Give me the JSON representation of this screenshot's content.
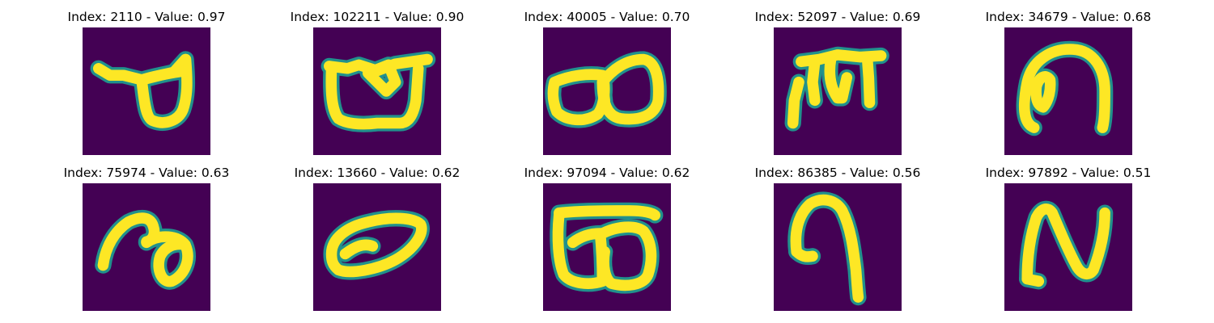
{
  "figure": {
    "colors": {
      "background": "#440154",
      "mid": "#21918c",
      "stroke": "#fde725"
    },
    "panels": [
      {
        "index": "2110",
        "value": "0.97",
        "title": "Index: 2110 - Value: 0.97",
        "glyph": "ta-hooked-loop"
      },
      {
        "index": "102211",
        "value": "0.90",
        "title": "Index: 102211 - Value: 0.90",
        "glyph": "u-with-bar"
      },
      {
        "index": "40005",
        "value": "0.70",
        "title": "Index: 40005 - Value: 0.70",
        "glyph": "double-loop"
      },
      {
        "index": "52097",
        "value": "0.69",
        "title": "Index: 52097 - Value: 0.69",
        "glyph": "headline-legs"
      },
      {
        "index": "34679",
        "value": "0.68",
        "title": "Index: 34679 - Value: 0.68",
        "glyph": "arch-with-loop"
      },
      {
        "index": "75974",
        "value": "0.63",
        "title": "Index: 75974 - Value: 0.63",
        "glyph": "curl-loop"
      },
      {
        "index": "13660",
        "value": "0.62",
        "title": "Index: 13660 - Value: 0.62",
        "glyph": "tilted-ellipse"
      },
      {
        "index": "97094",
        "value": "0.62",
        "title": "Index: 97094 - Value: 0.62",
        "glyph": "boxed-double-loop"
      },
      {
        "index": "86385",
        "value": "0.56",
        "title": "Index: 86385 - Value: 0.56",
        "glyph": "hook"
      },
      {
        "index": "97892",
        "value": "0.51",
        "title": "Index: 97892 - Value: 0.51",
        "glyph": "n-shape"
      }
    ]
  }
}
